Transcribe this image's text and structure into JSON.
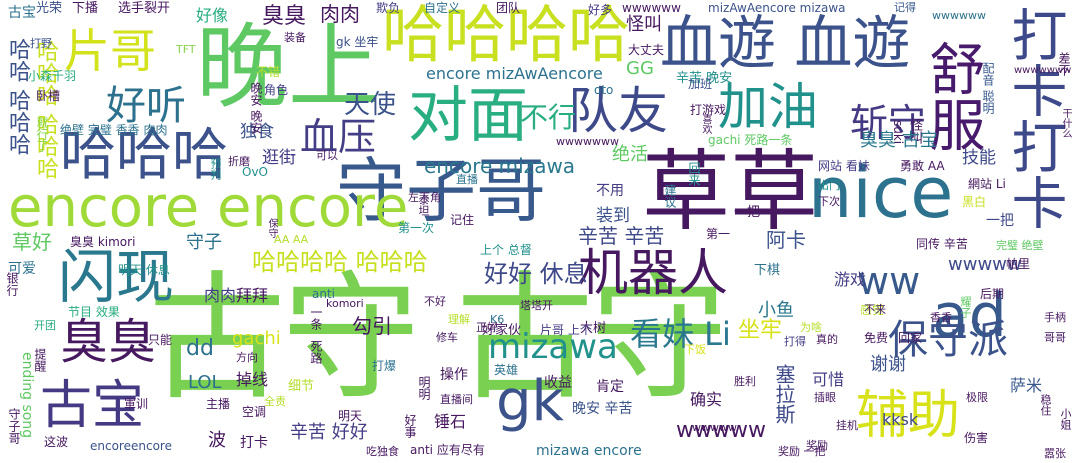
{
  "palette": {
    "dark_purple": "#46185f",
    "indigo": "#433e85",
    "blue": "#38598c",
    "slate": "#2c728e",
    "teal": "#21908d",
    "green_teal": "#27ad81",
    "green": "#5ec962",
    "lime": "#85d44a",
    "yellow_green": "#b5de2b",
    "yellow": "#d8e219"
  },
  "words": [
    {
      "text": "古守 古守"
    },
    {
      "text": "草草"
    },
    {
      "text": "晚上"
    },
    {
      "text": "守子哥"
    },
    {
      "text": "哈哈哈哈"
    },
    {
      "text": "血遊 血遊"
    },
    {
      "text": "nice"
    },
    {
      "text": "encore encore"
    },
    {
      "text": "哈哈哈"
    },
    {
      "text": "对面"
    },
    {
      "text": "队友"
    },
    {
      "text": "闪现"
    },
    {
      "text": "加油"
    },
    {
      "text": "机器人"
    },
    {
      "text": "ad"
    },
    {
      "text": "gk"
    },
    {
      "text": "舒服"
    },
    {
      "text": "打卡打卡"
    },
    {
      "text": "片哥"
    },
    {
      "text": "古宝"
    },
    {
      "text": "臭臭"
    },
    {
      "text": "辅助"
    },
    {
      "text": "保守派"
    },
    {
      "text": "血压"
    },
    {
      "text": "斩守"
    },
    {
      "text": "好听"
    },
    {
      "text": "ww"
    },
    {
      "text": "哈哈哈哈 哈哈哈"
    },
    {
      "text": "mizawa"
    },
    {
      "text": "看妹 Li"
    },
    {
      "text": "encore mizawa"
    },
    {
      "text": "不行"
    },
    {
      "text": "天使"
    },
    {
      "text": "好好 休息"
    },
    {
      "text": "wwwww"
    },
    {
      "text": "辛苦 辛苦"
    },
    {
      "text": "哈哈 哈哈哈"
    },
    {
      "text": "哈哈哈 哈哈哈"
    },
    {
      "text": "wwwww"
    },
    {
      "text": "encore mizAwAencore"
    },
    {
      "text": "mizAwAencore mizawa"
    },
    {
      "text": "臭臭"
    },
    {
      "text": "肉肉"
    },
    {
      "text": "好像"
    },
    {
      "text": "光荣"
    },
    {
      "text": "下播"
    },
    {
      "text": "选手裂开"
    },
    {
      "text": "欺负"
    },
    {
      "text": "自定义"
    },
    {
      "text": "团队"
    },
    {
      "text": "好多"
    },
    {
      "text": "记得"
    },
    {
      "text": "wwwwww"
    },
    {
      "text": "wwwwww"
    },
    {
      "text": "装备"
    },
    {
      "text": "gk 坐牢"
    },
    {
      "text": "TFT"
    },
    {
      "text": "打野"
    },
    {
      "text": "大丈夫"
    },
    {
      "text": "配音 聪明"
    },
    {
      "text": "差不"
    },
    {
      "text": "怪叫"
    },
    {
      "text": "GG"
    },
    {
      "text": "辛苦 晚安"
    },
    {
      "text": "不错"
    },
    {
      "text": "角色"
    },
    {
      "text": "oto"
    },
    {
      "text": "加班"
    },
    {
      "text": "打游戏"
    },
    {
      "text": "怪叫"
    },
    {
      "text": "suki"
    },
    {
      "text": "干什么"
    },
    {
      "text": "小森千羽"
    },
    {
      "text": "卧槽"
    },
    {
      "text": "独食"
    },
    {
      "text": "绝活"
    },
    {
      "text": "臭臭 古宝"
    },
    {
      "text": "技能"
    },
    {
      "text": "就行了"
    },
    {
      "text": "绝壁 完璧 香香 肉肉"
    },
    {
      "text": "gachi 死路一条"
    },
    {
      "text": "逛街"
    },
    {
      "text": "不用"
    },
    {
      "text": "网站 看妹"
    },
    {
      "text": "勇敢 AA"
    },
    {
      "text": "出门"
    },
    {
      "text": "網站 Li"
    },
    {
      "text": "下次"
    },
    {
      "text": "黑白"
    },
    {
      "text": "一把"
    },
    {
      "text": "建议"
    },
    {
      "text": "回来"
    },
    {
      "text": "泰坦"
    },
    {
      "text": "喜欢"
    },
    {
      "text": "晚安 晚安"
    },
    {
      "text": "OvO"
    },
    {
      "text": "预判"
    },
    {
      "text": "折磨"
    },
    {
      "text": "左下角"
    },
    {
      "text": "直播"
    },
    {
      "text": "装到"
    },
    {
      "text": "记住"
    },
    {
      "text": "第一次"
    },
    {
      "text": "上个 总督"
    },
    {
      "text": "第一"
    },
    {
      "text": "草好"
    },
    {
      "text": "守子"
    },
    {
      "text": "臭臭 kimori"
    },
    {
      "text": "保守"
    },
    {
      "text": "AA AA"
    },
    {
      "text": "阿卡"
    },
    {
      "text": "同传 辛苦"
    },
    {
      "text": "完璧 绝壁"
    },
    {
      "text": "帕里"
    },
    {
      "text": "可爱"
    },
    {
      "text": "明天 休息"
    },
    {
      "text": "银行"
    },
    {
      "text": "肉肉"
    },
    {
      "text": "拜拜"
    },
    {
      "text": "游戏"
    },
    {
      "text": "下棋"
    },
    {
      "text": "感觉"
    },
    {
      "text": "后期"
    },
    {
      "text": "手柄"
    },
    {
      "text": "香香"
    },
    {
      "text": "哥哥"
    },
    {
      "text": "不来"
    },
    {
      "text": "免费"
    },
    {
      "text": "回家"
    },
    {
      "text": "耀子"
    },
    {
      "text": "komori"
    },
    {
      "text": "不好"
    },
    {
      "text": "理解"
    },
    {
      "text": "K6"
    },
    {
      "text": "塔塔开"
    },
    {
      "text": "好家伙"
    },
    {
      "text": "大树"
    },
    {
      "text": "ending song"
    },
    {
      "text": "开团"
    },
    {
      "text": "节目 效果"
    },
    {
      "text": "anti"
    },
    {
      "text": "勾引"
    },
    {
      "text": "小鱼"
    },
    {
      "text": "dd"
    },
    {
      "text": "gachi"
    },
    {
      "text": "只能"
    },
    {
      "text": "一条"
    },
    {
      "text": "正好"
    },
    {
      "text": "片哥 上个"
    },
    {
      "text": "坐牢"
    },
    {
      "text": "为啥"
    },
    {
      "text": "真的"
    },
    {
      "text": "谢谢"
    },
    {
      "text": "提醒"
    },
    {
      "text": "方向"
    },
    {
      "text": "修车"
    },
    {
      "text": "下饭"
    },
    {
      "text": "打得"
    },
    {
      "text": "LOL"
    },
    {
      "text": "掉线"
    },
    {
      "text": "死路"
    },
    {
      "text": "打爆"
    },
    {
      "text": "操作"
    },
    {
      "text": "英雄"
    },
    {
      "text": "塞拉斯"
    },
    {
      "text": "可惜"
    },
    {
      "text": "萨米"
    },
    {
      "text": "主播"
    },
    {
      "text": "空调"
    },
    {
      "text": "细节"
    },
    {
      "text": "明明"
    },
    {
      "text": "收益"
    },
    {
      "text": "肯定"
    },
    {
      "text": "确实"
    },
    {
      "text": "胜利"
    },
    {
      "text": "插眼"
    },
    {
      "text": "极限"
    },
    {
      "text": "全责"
    },
    {
      "text": "直播间"
    },
    {
      "text": "晚安 辛苦"
    },
    {
      "text": "kksk"
    },
    {
      "text": "軍训"
    },
    {
      "text": "稳住"
    },
    {
      "text": "守子哥"
    },
    {
      "text": "奖励"
    },
    {
      "text": "明天"
    },
    {
      "text": "辛苦 好好"
    },
    {
      "text": "锤石"
    },
    {
      "text": "wwwww"
    },
    {
      "text": "挂机"
    },
    {
      "text": "小姐"
    },
    {
      "text": "伤害"
    },
    {
      "text": "这波"
    },
    {
      "text": "encoreencore"
    },
    {
      "text": "波"
    },
    {
      "text": "打卡"
    },
    {
      "text": "吃独食"
    },
    {
      "text": "好事"
    },
    {
      "text": "anti 应有尽有"
    },
    {
      "text": "mizawa encore"
    },
    {
      "text": "奖励 一把"
    },
    {
      "text": "嚣张"
    },
    {
      "text": "古宝"
    },
    {
      "text": "一把"
    },
    {
      "text": "wwwwwww"
    },
    {
      "text": "可以"
    },
    {
      "text": "wwwwwww"
    }
  ]
}
